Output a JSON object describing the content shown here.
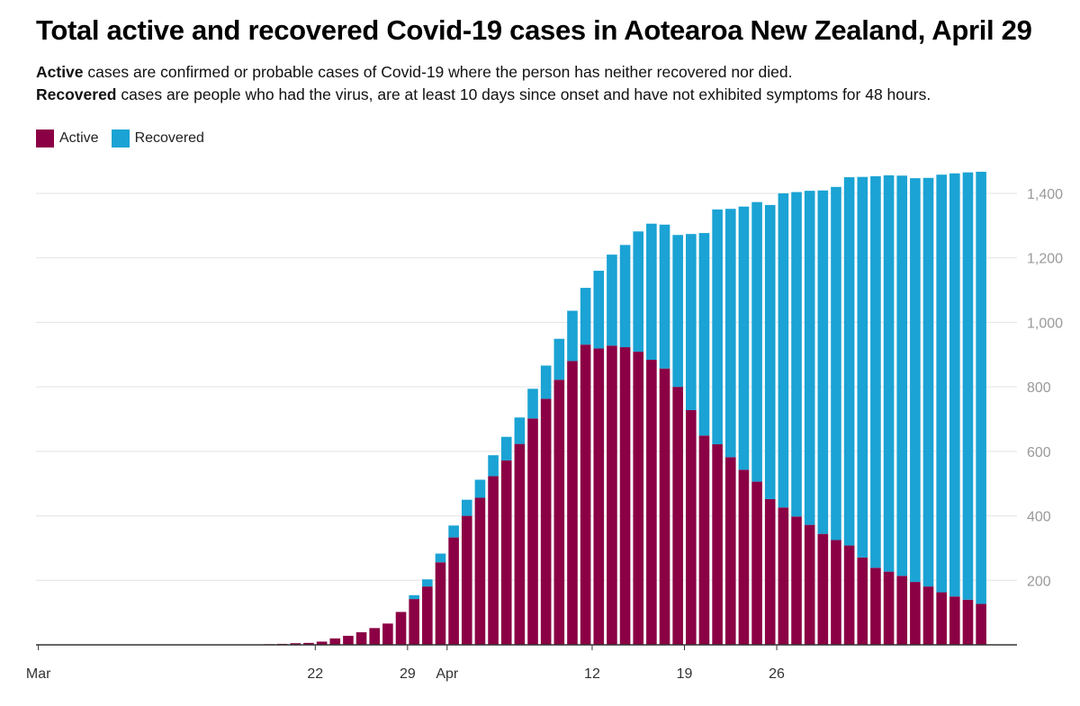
{
  "title": "Total active and recovered Covid-19 cases in Aotearoa New Zealand, April 29",
  "description": {
    "active_term": "Active",
    "active_text": " cases are confirmed or probable cases of Covid-19 where the person has neither recovered nor died.",
    "recovered_term": "Recovered",
    "recovered_text": " cases are people who had the virus, are at least 10 days since onset and have not exhibited symptoms for 48 hours."
  },
  "colors": {
    "active": "#8b0044",
    "recovered": "#1aa3d4",
    "grid": "#e3e3e3",
    "axis": "#333333"
  },
  "chart_data": {
    "type": "bar",
    "stacked": true,
    "legend_position": "top-left",
    "grid": true,
    "y_axis_side": "right",
    "ylim": [
      0,
      1450
    ],
    "y_ticks": [
      200,
      400,
      600,
      800,
      1000,
      1200,
      1400
    ],
    "y_tick_labels": [
      "200",
      "400",
      "600",
      "800",
      "1,000",
      "1,200",
      "1,400"
    ],
    "x_start": "Feb 28",
    "x_ticks": [
      {
        "label": "Mar",
        "index": 1
      },
      {
        "label": "22",
        "index": 22
      },
      {
        "label": "29",
        "index": 29
      },
      {
        "label": "Apr",
        "index": 32
      },
      {
        "label": "12",
        "index": 43
      },
      {
        "label": "19",
        "index": 50
      },
      {
        "label": "26",
        "index": 57
      }
    ],
    "bar_indices": [
      13,
      14,
      15,
      16,
      17,
      18,
      19,
      20,
      21,
      22,
      23,
      24,
      25,
      26,
      27,
      28,
      29,
      30,
      31,
      32,
      33,
      34,
      35,
      36,
      37,
      38,
      39,
      40,
      41,
      42,
      43,
      44,
      45,
      46,
      47,
      48,
      49,
      50,
      51,
      52,
      53,
      54,
      55,
      56,
      57,
      58,
      59,
      60,
      61,
      62,
      63,
      64,
      65,
      66,
      67,
      68,
      69,
      70,
      71,
      72
    ],
    "series": [
      {
        "name": "Active",
        "values": [
          1,
          1,
          1,
          1,
          1,
          2,
          3,
          5,
          6,
          10,
          20,
          28,
          39,
          52,
          66,
          102,
          142,
          181,
          256,
          333,
          400,
          456,
          523,
          572,
          623,
          702,
          763,
          822,
          880,
          931,
          919,
          928,
          923,
          909,
          884,
          857,
          800,
          728,
          649,
          622,
          582,
          543,
          506,
          452,
          426,
          398,
          372,
          344,
          325,
          308,
          271,
          239,
          227,
          214,
          195,
          181,
          163,
          150,
          140,
          127
        ]
      },
      {
        "name": "Recovered",
        "values": [
          0,
          0,
          0,
          0,
          0,
          0,
          0,
          0,
          0,
          0,
          0,
          0,
          0,
          0,
          0,
          0,
          12,
          22,
          27,
          37,
          50,
          56,
          65,
          73,
          82,
          92,
          103,
          127,
          156,
          176,
          241,
          282,
          317,
          373,
          422,
          446,
          471,
          546,
          628,
          728,
          770,
          816,
          867,
          912,
          974,
          1006,
          1036,
          1065,
          1095,
          1142,
          1180,
          1214,
          1229,
          1241,
          1252,
          1267,
          1295,
          1312,
          1325,
          1340
        ]
      }
    ]
  }
}
